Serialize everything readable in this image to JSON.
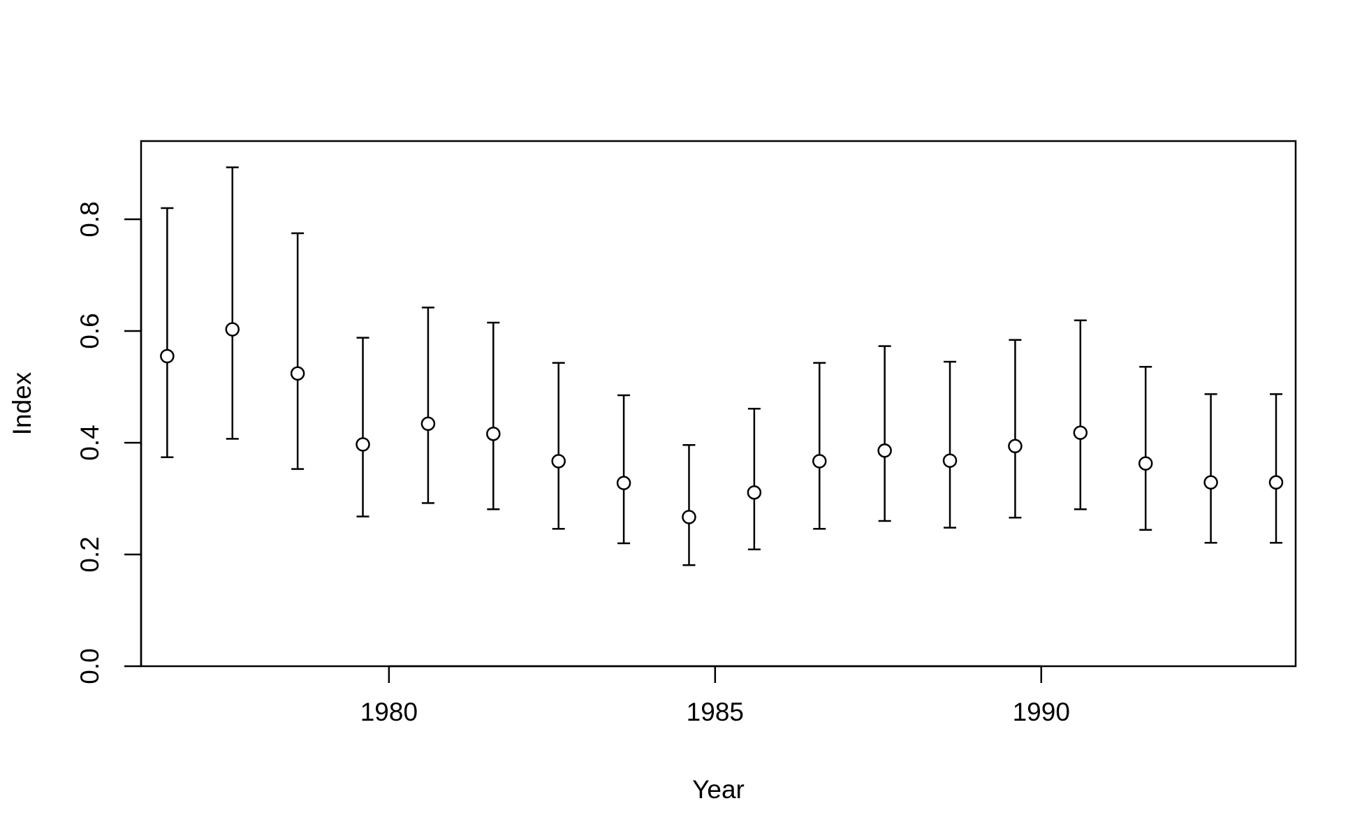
{
  "chart_data": {
    "type": "scatter",
    "title": "",
    "xlabel": "Year",
    "ylabel": "Index",
    "xlim": [
      1976.2,
      1993.9
    ],
    "ylim": [
      0.0,
      0.94
    ],
    "x_ticks": [
      1980,
      1985,
      1990
    ],
    "x_tick_labels": [
      "1980",
      "1985",
      "1990"
    ],
    "y_ticks": [
      0.0,
      0.2,
      0.4,
      0.6,
      0.8
    ],
    "y_tick_labels": [
      "0.0",
      "0.2",
      "0.4",
      "0.6",
      "0.8"
    ],
    "grid": false,
    "legend": "none",
    "series": [
      {
        "x": [
          1976.6,
          1977.6,
          1978.6,
          1979.6,
          1980.6,
          1981.6,
          1982.6,
          1983.6,
          1984.6,
          1985.6,
          1986.6,
          1987.6,
          1988.6,
          1989.6,
          1990.6,
          1991.6,
          1992.6,
          1993.6
        ],
        "values": [
          0.555,
          0.603,
          0.524,
          0.397,
          0.434,
          0.416,
          0.367,
          0.328,
          0.267,
          0.311,
          0.367,
          0.386,
          0.368,
          0.394,
          0.418,
          0.363,
          0.329,
          0.329
        ],
        "lower": [
          0.374,
          0.407,
          0.353,
          0.268,
          0.292,
          0.281,
          0.246,
          0.22,
          0.181,
          0.209,
          0.246,
          0.26,
          0.248,
          0.266,
          0.281,
          0.244,
          0.221,
          0.221
        ],
        "upper": [
          0.82,
          0.893,
          0.775,
          0.588,
          0.642,
          0.615,
          0.543,
          0.485,
          0.396,
          0.461,
          0.543,
          0.573,
          0.545,
          0.584,
          0.619,
          0.536,
          0.487,
          0.487
        ]
      }
    ],
    "colors": {
      "line": "#000000",
      "marker_fill": "#ffffff",
      "background": "#ffffff"
    }
  }
}
